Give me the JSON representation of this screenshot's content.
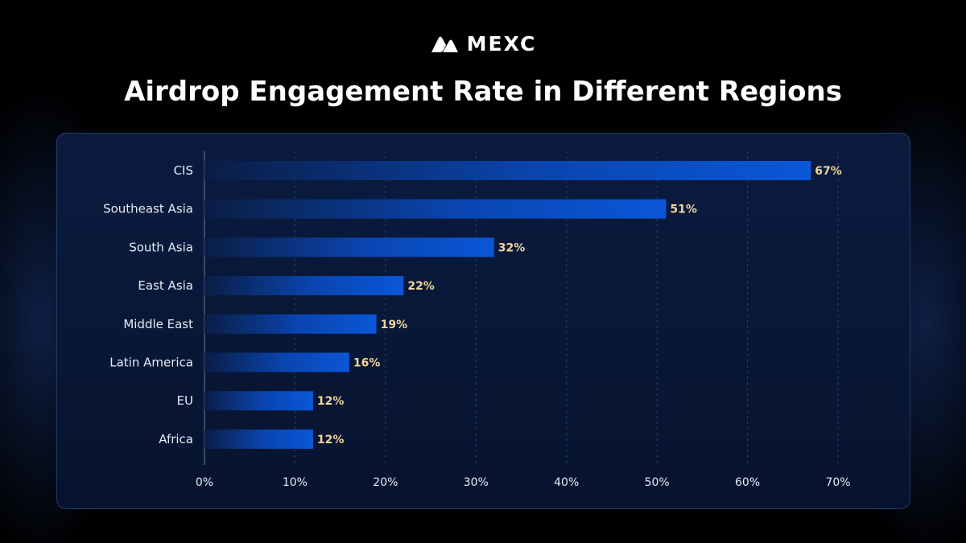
{
  "brand": {
    "name": "MEXC",
    "logo_icon": "mexc-mountain-logo-icon"
  },
  "colors": {
    "bar_start": "#0a1d45",
    "bar_end": "#0a57d8",
    "value_label": "#f2d49b",
    "grid": "#2b3f6b",
    "axis": "#6d7ea3"
  },
  "chart_data": {
    "type": "bar",
    "orientation": "horizontal",
    "title": "Airdrop Engagement Rate in Different Regions",
    "categories": [
      "CIS",
      "Southeast Asia",
      "South Asia",
      "East Asia",
      "Middle East",
      "Latin America",
      "EU",
      "Africa"
    ],
    "values": [
      67,
      51,
      32,
      22,
      19,
      16,
      12,
      12
    ],
    "value_labels": [
      "67%",
      "51%",
      "32%",
      "22%",
      "19%",
      "16%",
      "12%",
      "12%"
    ],
    "xlim": [
      0,
      70
    ],
    "xticks": [
      0,
      10,
      20,
      30,
      40,
      50,
      60,
      70
    ],
    "xtick_labels": [
      "0%",
      "10%",
      "20%",
      "30%",
      "40%",
      "50%",
      "60%",
      "70%"
    ],
    "xlabel": "",
    "ylabel": "",
    "grid": true,
    "legend": "none"
  }
}
